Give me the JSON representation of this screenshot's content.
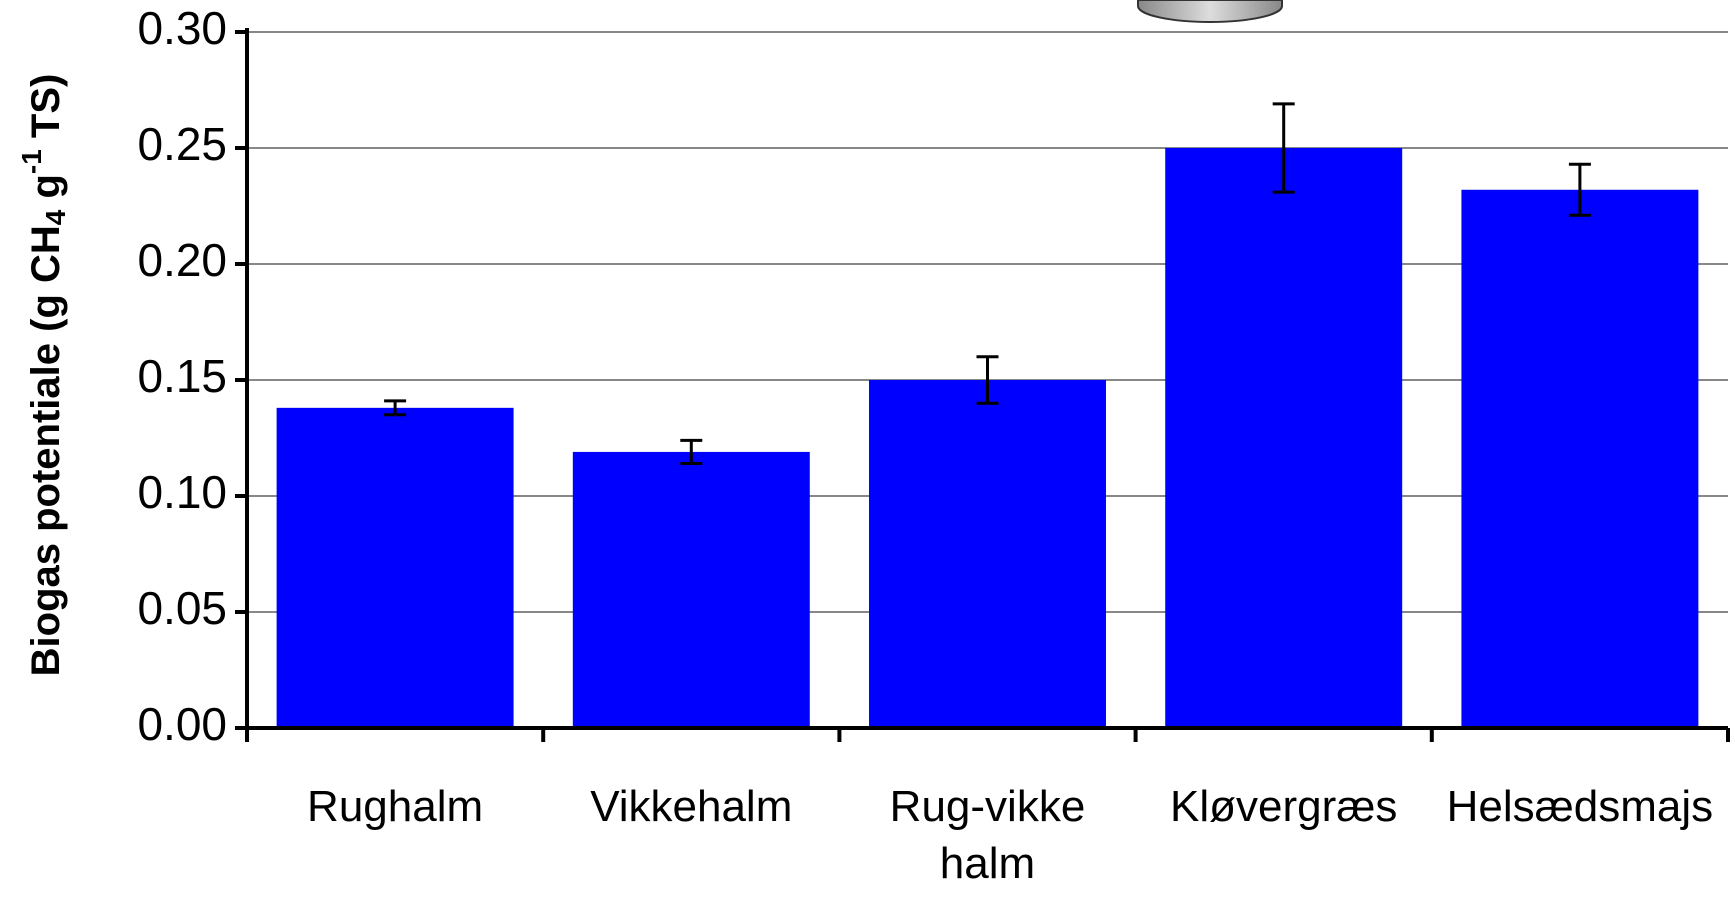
{
  "chart_data": {
    "type": "bar",
    "y_label": [
      "Biogas potentiale (g CH",
      "4",
      " g",
      "-1",
      " TS)"
    ],
    "categories": [
      "Rughalm",
      "Vikkehalm",
      "Rug-vikke halm",
      "Kløvergræs",
      "Helsædsmajs"
    ],
    "values": [
      0.138,
      0.119,
      0.15,
      0.25,
      0.232
    ],
    "errors": [
      0.003,
      0.005,
      0.01,
      0.019,
      0.011
    ],
    "color": "#0000ff",
    "ylim": [
      0,
      0.3
    ],
    "yticks": [
      {
        "value": 0,
        "label": "0.00"
      },
      {
        "value": 0.05,
        "label": "0.05"
      },
      {
        "value": 0.1,
        "label": "0.10"
      },
      {
        "value": 0.15,
        "label": "0.15"
      },
      {
        "value": 0.2,
        "label": "0.20"
      },
      {
        "value": 0.25,
        "label": "0.25"
      },
      {
        "value": 0.3,
        "label": "0.30"
      }
    ],
    "grid": true
  }
}
